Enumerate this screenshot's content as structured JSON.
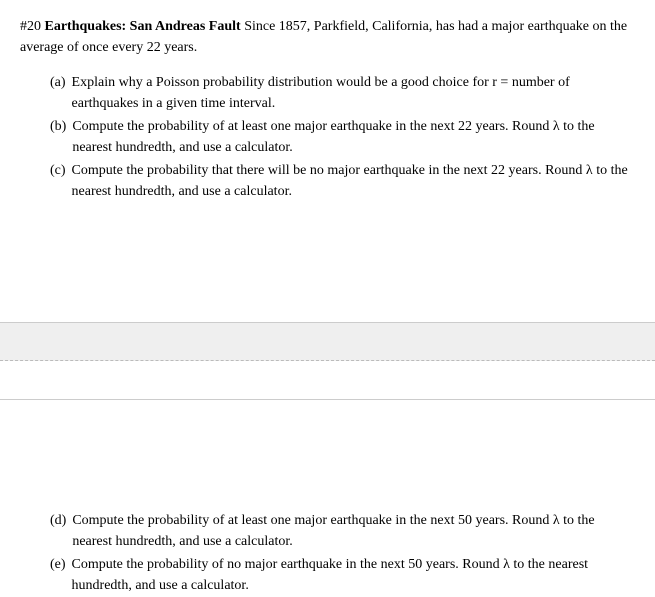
{
  "header": {
    "number": "#20 ",
    "title": "Earthquakes: San Andreas Fault",
    "intro": "  Since 1857, Parkfield, California, has had a major earthquake on the average of once every 22 years."
  },
  "questions_top": [
    {
      "label": "(a)",
      "text": "Explain why a Poisson probability distribution would be a good choice for r = number of earthquakes in a given time interval."
    },
    {
      "label": "(b)",
      "text": "Compute the probability of at least one major earthquake in the next 22 years.  Round λ to the nearest hundredth, and use a calculator."
    },
    {
      "label": "(c)",
      "text": "Compute the probability that there will be no major earthquake in the next 22 years.  Round λ to the nearest hundredth, and use a calculator."
    }
  ],
  "questions_bottom": [
    {
      "label": "(d)",
      "text": "Compute the probability of at least one major earthquake in the next 50 years.  Round λ to the nearest hundredth, and use a calculator."
    },
    {
      "label": "(e)",
      "text": "Compute the probability of no major earthquake in the next 50 years.  Round λ to the nearest hundredth, and use a calculator."
    }
  ],
  "colors": {
    "background": "#ffffff",
    "text": "#000000",
    "separator_line": "#cccccc",
    "separator_dash": "#bbbbbb",
    "band_fill": "#efefef"
  },
  "typography": {
    "font_family": "Georgia, Times New Roman, serif",
    "font_size_pt": 11
  }
}
